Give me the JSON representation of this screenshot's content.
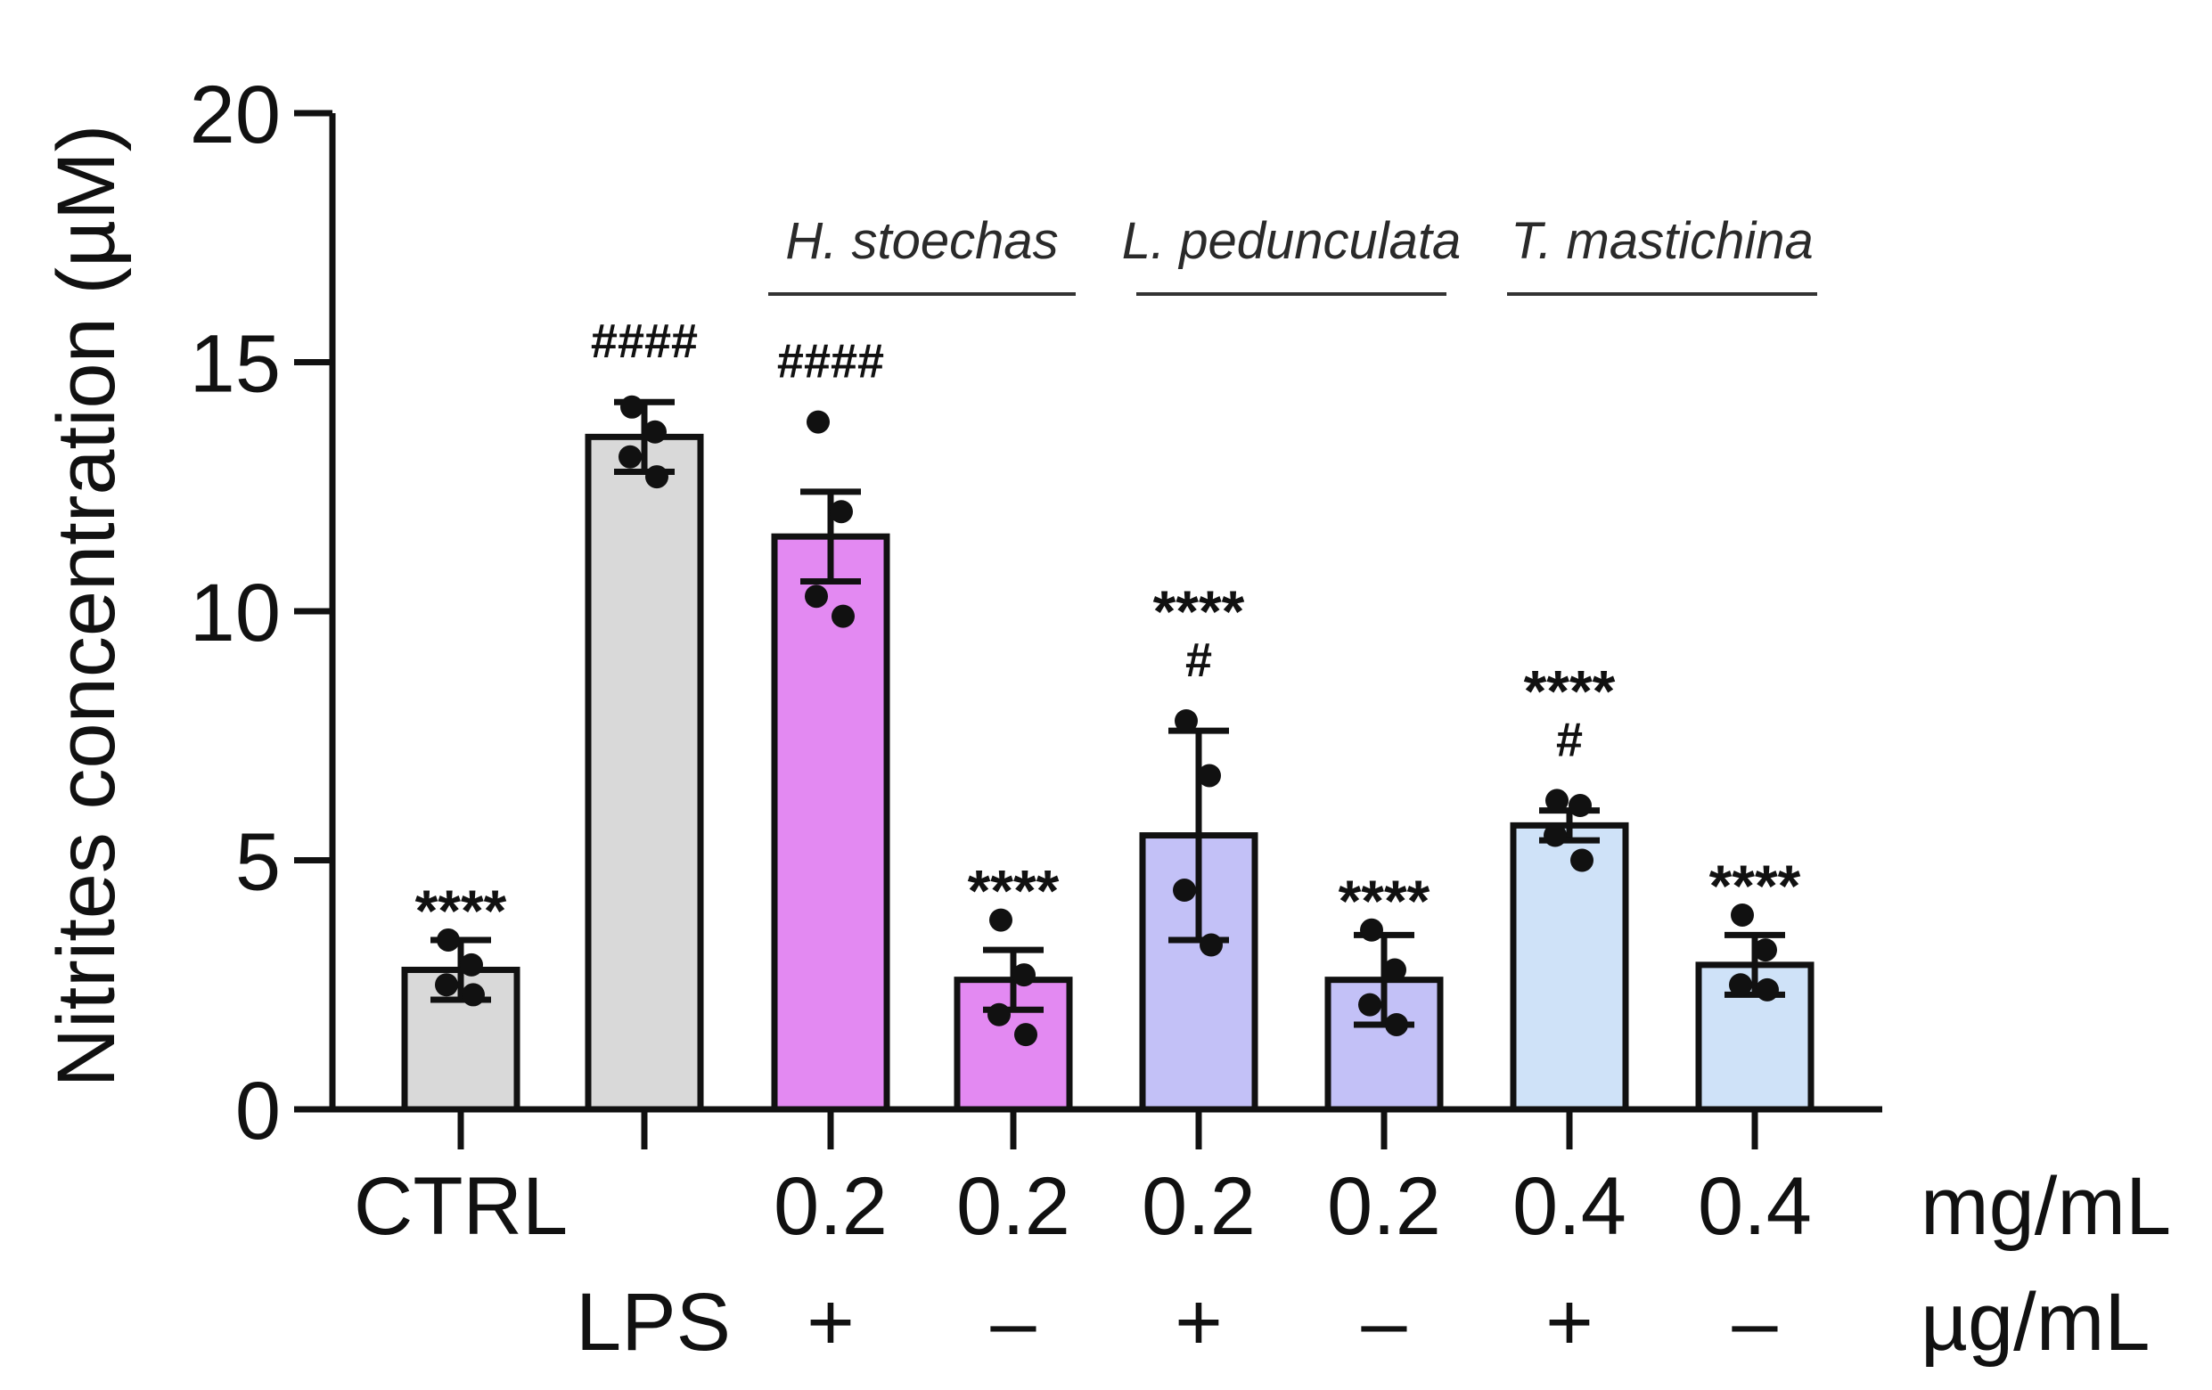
{
  "chart_data": {
    "type": "bar",
    "ylabel": "Nitrites concentration (µM)",
    "ylim": [
      0,
      20
    ],
    "yticks": [
      0,
      5,
      10,
      15,
      20
    ],
    "categories": [
      "CTRL",
      "",
      "0.2",
      "0.2",
      "0.2",
      "0.2",
      "0.4",
      "0.4"
    ],
    "lps_row": [
      "",
      "LPS",
      "+",
      "–",
      "+",
      "–",
      "+",
      "–"
    ],
    "units": [
      "mg/mL",
      "µg/mL"
    ],
    "bars": [
      {
        "value": 2.8,
        "sd": 0.6,
        "points": [
          3.4,
          2.9,
          2.5,
          2.3
        ],
        "color": "#d9d9d9",
        "stars": "****",
        "hashes": ""
      },
      {
        "value": 13.5,
        "sd": 0.7,
        "points": [
          14.1,
          13.6,
          13.1,
          12.7
        ],
        "color": "#d9d9d9",
        "stars": "",
        "hashes": "####"
      },
      {
        "value": 11.5,
        "sd": 0.9,
        "points": [
          13.8,
          12.0,
          10.3,
          9.9
        ],
        "color": "#e389f2",
        "stars": "",
        "hashes": "####"
      },
      {
        "value": 2.6,
        "sd": 0.6,
        "points": [
          3.8,
          2.7,
          1.9,
          1.5
        ],
        "color": "#e389f2",
        "stars": "****",
        "hashes": ""
      },
      {
        "value": 5.5,
        "sd": 2.1,
        "points": [
          7.8,
          6.7,
          4.4,
          3.3
        ],
        "color": "#c3c1f7",
        "stars": "****",
        "hashes": "#"
      },
      {
        "value": 2.6,
        "sd": 0.9,
        "points": [
          3.6,
          2.8,
          2.1,
          1.7
        ],
        "color": "#c3c1f7",
        "stars": "****",
        "hashes": ""
      },
      {
        "value": 5.7,
        "sd": 0.3,
        "points": [
          6.2,
          6.1,
          5.5,
          5.0
        ],
        "color": "#cfe2f8",
        "stars": "****",
        "hashes": "#"
      },
      {
        "value": 2.9,
        "sd": 0.6,
        "points": [
          3.9,
          3.2,
          2.5,
          2.4
        ],
        "color": "#cfe2f8",
        "stars": "****",
        "hashes": ""
      }
    ],
    "groups": [
      {
        "label": "H. stoechas",
        "bars": [
          2,
          3
        ]
      },
      {
        "label": "L. pedunculata",
        "bars": [
          4,
          5
        ]
      },
      {
        "label": "T. mastichina",
        "bars": [
          6,
          7
        ]
      }
    ]
  }
}
